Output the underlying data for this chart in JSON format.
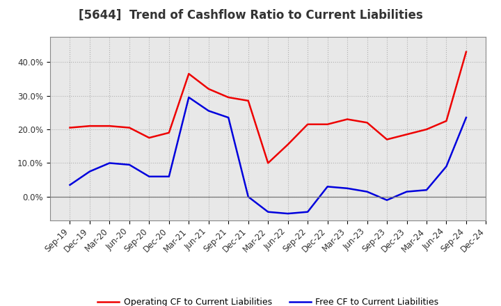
{
  "title": "[5644]  Trend of Cashflow Ratio to Current Liabilities",
  "x_labels": [
    "Sep-19",
    "Dec-19",
    "Mar-20",
    "Jun-20",
    "Sep-20",
    "Dec-20",
    "Mar-21",
    "Jun-21",
    "Sep-21",
    "Dec-21",
    "Mar-22",
    "Jun-22",
    "Sep-22",
    "Dec-22",
    "Mar-23",
    "Jun-23",
    "Sep-23",
    "Dec-23",
    "Mar-24",
    "Jun-24",
    "Sep-24",
    "Dec-24"
  ],
  "operating_cf": [
    0.205,
    0.21,
    0.21,
    0.205,
    0.175,
    0.19,
    0.365,
    0.32,
    0.295,
    0.285,
    0.1,
    0.155,
    0.215,
    0.215,
    0.23,
    0.22,
    0.17,
    0.185,
    0.2,
    0.225,
    0.43,
    null
  ],
  "free_cf": [
    0.035,
    0.075,
    0.1,
    0.095,
    0.06,
    0.06,
    0.295,
    0.255,
    0.235,
    0.0,
    -0.045,
    -0.05,
    -0.045,
    0.03,
    0.025,
    0.015,
    -0.01,
    0.015,
    0.02,
    0.09,
    0.235,
    null
  ],
  "ylim": [
    -0.07,
    0.475
  ],
  "yticks": [
    0.0,
    0.1,
    0.2,
    0.3,
    0.4
  ],
  "line_color_operating": "#ee0000",
  "line_color_free": "#0000dd",
  "legend_operating": "Operating CF to Current Liabilities",
  "legend_free": "Free CF to Current Liabilities",
  "background_color": "#ffffff",
  "plot_bg_color": "#e8e8e8",
  "grid_color": "#aaaaaa",
  "title_fontsize": 12,
  "tick_fontsize": 8.5
}
